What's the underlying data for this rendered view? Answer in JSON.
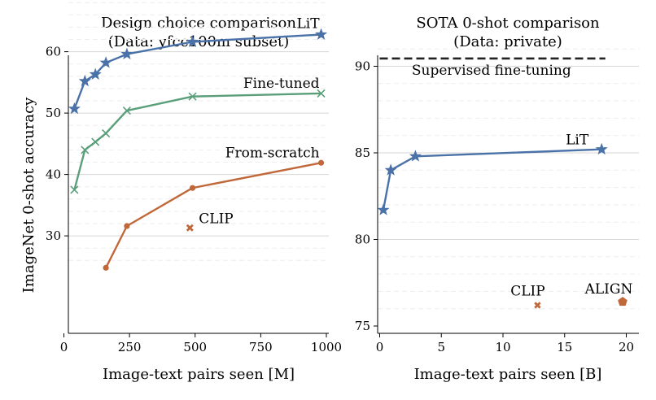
{
  "chart_data": [
    {
      "type": "line",
      "title": "Design choice comparison",
      "subtitle": "(Data: yfcc100m subset)",
      "xlabel": "Image-text pairs seen [M]",
      "ylabel": "ImageNet 0-shot accuracy",
      "xlim": [
        0,
        1000
      ],
      "ylim": [
        24,
        69
      ],
      "xticks": [
        0,
        250,
        500,
        750,
        1000
      ],
      "yticks": [
        30,
        40,
        50,
        60
      ],
      "grid": "horizontal dashed",
      "series": [
        {
          "name": "LiT",
          "color": "#4a72a8",
          "marker": "star",
          "x": [
            40,
            80,
            120,
            160,
            240,
            490,
            980
          ],
          "y": [
            50.7,
            55.2,
            56.3,
            58.2,
            59.6,
            61.6,
            62.8
          ]
        },
        {
          "name": "Fine-tuned",
          "color": "#5a9e7a",
          "marker": "x",
          "x": [
            40,
            80,
            120,
            160,
            240,
            490,
            980
          ],
          "y": [
            37.5,
            44.0,
            45.3,
            46.7,
            50.4,
            52.7,
            53.2
          ]
        },
        {
          "name": "From-scratch",
          "color": "#c0683a",
          "marker": "dot",
          "x": [
            160,
            240,
            490,
            980
          ],
          "y": [
            24.8,
            31.6,
            37.8,
            41.9
          ]
        }
      ],
      "points": [
        {
          "name": "CLIP",
          "color": "#c0683a",
          "marker": "x",
          "x": 480,
          "y": 31.3
        }
      ]
    },
    {
      "type": "line",
      "title": "SOTA 0-shot comparison",
      "subtitle": "(Data: private)",
      "xlabel": "Image-text pairs seen [B]",
      "xlim": [
        0,
        21
      ],
      "ylim": [
        75,
        91.2
      ],
      "xticks": [
        0,
        5,
        10,
        15,
        20
      ],
      "yticks": [
        75,
        80,
        85,
        90
      ],
      "grid": "horizontal dashed",
      "series": [
        {
          "name": "LiT",
          "color": "#4a72a8",
          "marker": "star",
          "x": [
            0.3,
            0.9,
            2.9,
            18.0
          ],
          "y": [
            81.7,
            84.0,
            84.8,
            85.2
          ]
        }
      ],
      "reference_line": {
        "name": "Supervised fine-tuning",
        "y": 90.45,
        "color": "#222222"
      },
      "points": [
        {
          "name": "CLIP",
          "color": "#c0683a",
          "marker": "x",
          "x": 12.8,
          "y": 76.2
        },
        {
          "name": "ALIGN",
          "color": "#c0683a",
          "marker": "pentagon",
          "x": 19.7,
          "y": 76.4
        }
      ]
    }
  ]
}
